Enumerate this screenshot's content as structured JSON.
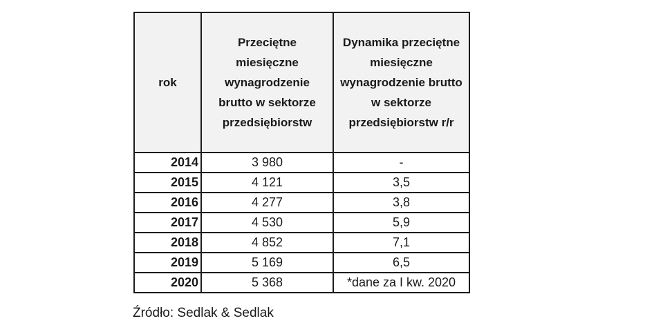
{
  "chart_data": {
    "type": "table",
    "columns": [
      "rok",
      "Przeciętne miesięczne wynagrodzenie brutto w sektorze przedsiębiorstw",
      "Dynamika przeciętne miesięczne wynagrodzenie brutto w sektorze przedsiębiorstw r/r"
    ],
    "rows": [
      {
        "year": "2014",
        "wage": "3 980",
        "dynamics": "-"
      },
      {
        "year": "2015",
        "wage": "4 121",
        "dynamics": "3,5"
      },
      {
        "year": "2016",
        "wage": "4 277",
        "dynamics": "3,8"
      },
      {
        "year": "2017",
        "wage": "4 530",
        "dynamics": "5,9"
      },
      {
        "year": "2018",
        "wage": "4 852",
        "dynamics": "7,1"
      },
      {
        "year": "2019",
        "wage": "5 169",
        "dynamics": "6,5"
      },
      {
        "year": "2020",
        "wage": "5 368",
        "dynamics": "*dane za I kw. 2020"
      }
    ],
    "years": [
      2014,
      2015,
      2016,
      2017,
      2018,
      2019,
      2020
    ],
    "wages_pln": [
      3980,
      4121,
      4277,
      4530,
      4852,
      5169,
      5368
    ],
    "dynamics_pct_yoy": [
      null,
      3.5,
      3.8,
      5.9,
      7.1,
      6.5,
      null
    ],
    "footnote_2020": "*dane za I kw. 2020"
  },
  "source_note": "Źródło: Sedlak & Sedlak",
  "colors": {
    "header_bg": "#f2f2f2",
    "border": "#1c1c1c",
    "text": "#1a1a1a",
    "page_bg": "#ffffff"
  }
}
